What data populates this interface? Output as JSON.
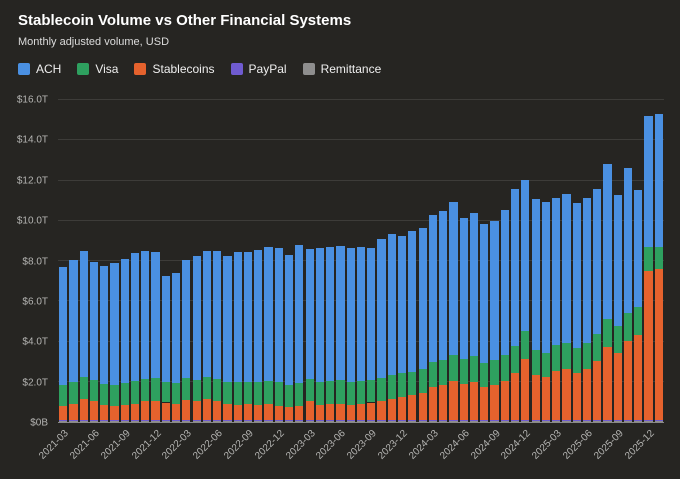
{
  "chart_data": {
    "type": "bar",
    "stacked": true,
    "title": "Stablecoin Volume vs Other Financial Systems",
    "subtitle": "Monthly adjusted volume, USD",
    "legend_position": "top-left",
    "grid": true,
    "ylim": [
      0,
      16
    ],
    "yticks": [
      0,
      2,
      4,
      6,
      8,
      10,
      12,
      14,
      16
    ],
    "ytick_labels": [
      "$0B",
      "$2.0T",
      "$4.0T",
      "$6.0T",
      "$8.0T",
      "$10.0T",
      "$12.0T",
      "$14.0T",
      "$16.0T"
    ],
    "xtick_every": 3,
    "x": [
      "2021-03",
      "2021-04",
      "2021-05",
      "2021-06",
      "2021-07",
      "2021-08",
      "2021-09",
      "2021-10",
      "2021-11",
      "2021-12",
      "2022-01",
      "2022-02",
      "2022-03",
      "2022-04",
      "2022-05",
      "2022-06",
      "2022-07",
      "2022-08",
      "2022-09",
      "2022-10",
      "2022-11",
      "2022-12",
      "2023-01",
      "2023-02",
      "2023-03",
      "2023-04",
      "2023-05",
      "2023-06",
      "2023-07",
      "2023-08",
      "2023-09",
      "2023-10",
      "2023-11",
      "2023-12",
      "2024-01",
      "2024-02",
      "2024-03",
      "2024-04",
      "2024-05",
      "2024-06",
      "2024-07",
      "2024-08",
      "2024-09",
      "2024-10",
      "2024-11",
      "2024-12",
      "2025-01",
      "2025-02",
      "2025-03",
      "2025-04",
      "2025-05",
      "2025-06",
      "2025-07",
      "2025-08",
      "2025-09",
      "2025-10",
      "2025-11",
      "2025-12",
      "2026-01"
    ],
    "stack_bottom_to_top": [
      "Remittance",
      "PayPal",
      "Stablecoins",
      "Visa",
      "ACH"
    ],
    "series": [
      {
        "name": "ACH",
        "color": "#4a90e2",
        "values": [
          5.9,
          6.1,
          6.3,
          5.9,
          5.9,
          6.1,
          6.2,
          6.4,
          6.4,
          6.3,
          5.3,
          5.5,
          5.9,
          6.2,
          6.3,
          6.4,
          6.3,
          6.5,
          6.5,
          6.6,
          6.7,
          6.7,
          6.5,
          6.9,
          6.5,
          6.7,
          6.7,
          6.7,
          6.7,
          6.7,
          6.6,
          6.9,
          7.0,
          6.8,
          7.0,
          7.0,
          7.3,
          7.4,
          7.6,
          7.0,
          7.1,
          6.9,
          6.9,
          7.2,
          7.8,
          7.5,
          7.5,
          7.5,
          7.3,
          7.4,
          7.2,
          7.2,
          7.2,
          7.7,
          6.5,
          7.2,
          5.8,
          6.5,
          6.6
        ]
      },
      {
        "name": "Visa",
        "color": "#2ea05f",
        "values": [
          1.0,
          1.05,
          1.1,
          1.05,
          1.0,
          1.0,
          1.05,
          1.1,
          1.1,
          1.15,
          1.0,
          1.0,
          1.1,
          1.05,
          1.1,
          1.1,
          1.05,
          1.1,
          1.05,
          1.1,
          1.1,
          1.15,
          1.05,
          1.1,
          1.1,
          1.1,
          1.1,
          1.15,
          1.1,
          1.1,
          1.1,
          1.15,
          1.2,
          1.2,
          1.15,
          1.2,
          1.25,
          1.25,
          1.3,
          1.25,
          1.3,
          1.2,
          1.25,
          1.3,
          1.35,
          1.4,
          1.25,
          1.2,
          1.3,
          1.3,
          1.25,
          1.3,
          1.35,
          1.4,
          1.35,
          1.4,
          1.4,
          1.2,
          1.1
        ]
      },
      {
        "name": "Stablecoins",
        "color": "#e5622d",
        "values": [
          0.7,
          0.8,
          1.0,
          0.9,
          0.75,
          0.7,
          0.75,
          0.8,
          0.9,
          0.9,
          0.85,
          0.8,
          0.95,
          0.9,
          1.0,
          0.9,
          0.8,
          0.75,
          0.8,
          0.75,
          0.8,
          0.7,
          0.65,
          0.7,
          0.9,
          0.75,
          0.8,
          0.8,
          0.75,
          0.8,
          0.85,
          0.9,
          1.0,
          1.1,
          1.2,
          1.3,
          1.6,
          1.7,
          1.9,
          1.75,
          1.85,
          1.6,
          1.7,
          1.9,
          2.3,
          3.0,
          2.2,
          2.1,
          2.4,
          2.5,
          2.3,
          2.5,
          2.9,
          3.6,
          3.3,
          3.9,
          4.2,
          7.4,
          7.5
        ]
      },
      {
        "name": "PayPal",
        "color": "#6f5bd0",
        "values_constant": 0.07
      },
      {
        "name": "Remittance",
        "color": "#8e8e8e",
        "values_constant": 0.05
      }
    ]
  }
}
